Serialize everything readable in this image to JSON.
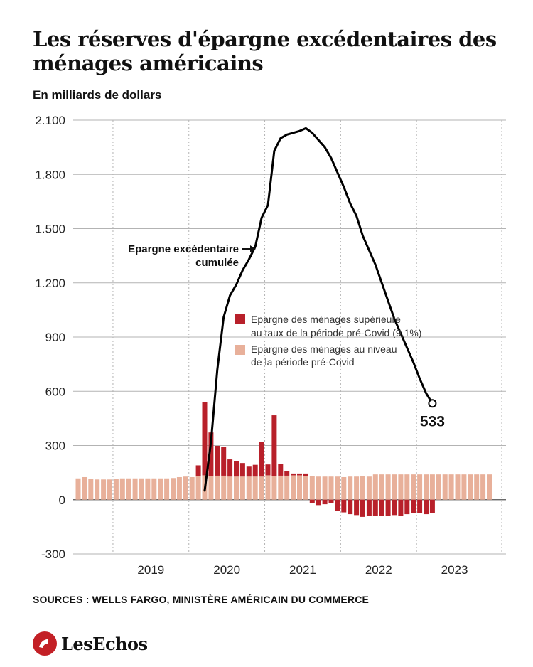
{
  "header": {
    "title": "Les réserves d'épargne excédentaires des ménages américains",
    "subtitle": "En milliards de dollars"
  },
  "footer": {
    "sources": "SOURCES : WELLS FARGO, MINISTÈRE AMÉRICAIN DU COMMERCE",
    "logo_text": "LesEchos"
  },
  "colors": {
    "excess_bar": "#b8202a",
    "base_bar": "#e8b09a",
    "line": "#000000",
    "grid": "#b3b3b3",
    "logo_red": "#c32026"
  },
  "chart_data": {
    "type": "bar",
    "title": "Les réserves d'épargne excédentaires des ménages américains",
    "subtitle": "En milliards de dollars",
    "ylim": [
      -300,
      2100
    ],
    "yticks": [
      -300,
      0,
      300,
      600,
      900,
      1200,
      1500,
      1800,
      2100
    ],
    "ytick_labels": [
      "-300",
      "0",
      "300",
      "600",
      "900",
      "1.200",
      "1.500",
      "1.800",
      "2.100"
    ],
    "xtick_labels": [
      "2019",
      "2020",
      "2021",
      "2022",
      "2023"
    ],
    "grid": "vertical dotted year separators",
    "legend": {
      "placement": "center",
      "entries": [
        "Epargne des ménages supérieure au taux de la période pré-Covid (9,1%)",
        "Epargne des ménages au niveau de la période pré-Covid"
      ]
    },
    "annotation": "Epargne excédentaire cumulée",
    "end_label": "533",
    "months": [
      "2018-07",
      "2018-08",
      "2018-09",
      "2018-10",
      "2018-11",
      "2018-12",
      "2019-01",
      "2019-02",
      "2019-03",
      "2019-04",
      "2019-05",
      "2019-06",
      "2019-07",
      "2019-08",
      "2019-09",
      "2019-10",
      "2019-11",
      "2019-12",
      "2020-01",
      "2020-02",
      "2020-03",
      "2020-04",
      "2020-05",
      "2020-06",
      "2020-07",
      "2020-08",
      "2020-09",
      "2020-10",
      "2020-11",
      "2020-12",
      "2021-01",
      "2021-02",
      "2021-03",
      "2021-04",
      "2021-05",
      "2021-06",
      "2021-07",
      "2021-08",
      "2021-09",
      "2021-10",
      "2021-11",
      "2021-12",
      "2022-01",
      "2022-02",
      "2022-03",
      "2022-04",
      "2022-05",
      "2022-06",
      "2022-07",
      "2022-08",
      "2022-09",
      "2022-10",
      "2022-11",
      "2022-12",
      "2023-01",
      "2023-02",
      "2023-03",
      "2023-04",
      "2023-05",
      "2023-06",
      "2023-07",
      "2023-08",
      "2023-09",
      "2023-10",
      "2023-11",
      "2023-12"
    ],
    "series": [
      {
        "name": "Epargne des ménages au niveau de la période pré-Covid",
        "type": "bar",
        "values": [
          118,
          125,
          115,
          112,
          112,
          112,
          115,
          118,
          118,
          118,
          118,
          118,
          118,
          118,
          118,
          120,
          125,
          128,
          125,
          130,
          135,
          132,
          133,
          133,
          128,
          128,
          128,
          128,
          128,
          128,
          135,
          132,
          133,
          133,
          135,
          135,
          130,
          130,
          128,
          128,
          128,
          128,
          125,
          128,
          128,
          130,
          128,
          140,
          140,
          140,
          140,
          140,
          140,
          140,
          140,
          140,
          140,
          140,
          140,
          140,
          140,
          140,
          140,
          140,
          140,
          140
        ]
      },
      {
        "name": "Epargne des ménages supérieure au taux de la période pré-Covid (9,1%)",
        "type": "bar",
        "values": [
          0,
          0,
          0,
          0,
          0,
          0,
          0,
          0,
          0,
          0,
          0,
          0,
          0,
          0,
          0,
          0,
          0,
          0,
          0,
          60,
          405,
          240,
          165,
          160,
          95,
          85,
          75,
          55,
          65,
          190,
          60,
          335,
          65,
          25,
          10,
          10,
          15,
          -20,
          -30,
          -25,
          -20,
          -60,
          -70,
          -80,
          -85,
          -95,
          -90,
          -90,
          -90,
          -90,
          -85,
          -90,
          -80,
          -75,
          -75,
          -80,
          -75
        ]
      },
      {
        "name": "Epargne excédentaire cumulée",
        "type": "line",
        "points": [
          [
            "2020-03",
            50
          ],
          [
            "2020-04",
            320
          ],
          [
            "2020-05",
            720
          ],
          [
            "2020-06",
            1010
          ],
          [
            "2020-07",
            1130
          ],
          [
            "2020-08",
            1190
          ],
          [
            "2020-09",
            1270
          ],
          [
            "2020-10",
            1330
          ],
          [
            "2020-11",
            1400
          ],
          [
            "2020-12",
            1560
          ],
          [
            "2021-01",
            1630
          ],
          [
            "2021-02",
            1930
          ],
          [
            "2021-03",
            2000
          ],
          [
            "2021-04",
            2020
          ],
          [
            "2021-05",
            2030
          ],
          [
            "2021-06",
            2040
          ],
          [
            "2021-07",
            2055
          ],
          [
            "2021-08",
            2030
          ],
          [
            "2021-09",
            1990
          ],
          [
            "2021-10",
            1950
          ],
          [
            "2021-11",
            1890
          ],
          [
            "2021-12",
            1810
          ],
          [
            "2022-01",
            1730
          ],
          [
            "2022-02",
            1640
          ],
          [
            "2022-03",
            1570
          ],
          [
            "2022-04",
            1460
          ],
          [
            "2022-05",
            1380
          ],
          [
            "2022-06",
            1300
          ],
          [
            "2022-07",
            1200
          ],
          [
            "2022-08",
            1100
          ],
          [
            "2022-09",
            1000
          ],
          [
            "2022-10",
            920
          ],
          [
            "2022-11",
            840
          ],
          [
            "2022-12",
            760
          ],
          [
            "2023-01",
            670
          ],
          [
            "2023-02",
            590
          ],
          [
            "2023-03",
            533
          ]
        ]
      }
    ]
  }
}
